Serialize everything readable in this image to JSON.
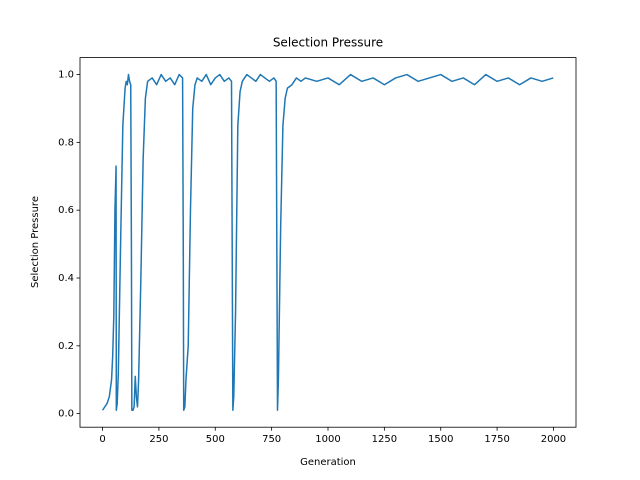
{
  "chart_data": {
    "type": "line",
    "title": "Selection Pressure",
    "xlabel": "Generation",
    "ylabel": "Selection Pressure",
    "xlim": [
      -100,
      2100
    ],
    "ylim": [
      -0.04,
      1.05
    ],
    "xticks": [
      0,
      250,
      500,
      750,
      1000,
      1250,
      1500,
      1750,
      2000
    ],
    "yticks": [
      {
        "value": 0,
        "label": "0.0"
      },
      0.2,
      0.4,
      0.6,
      0.8,
      {
        "value": 1,
        "label": "1.0"
      }
    ],
    "series": [
      {
        "name": "Selection Pressure",
        "color": "#1f77b4",
        "x": [
          0,
          10,
          20,
          30,
          40,
          45,
          50,
          55,
          60,
          61,
          65,
          70,
          80,
          90,
          100,
          105,
          110,
          115,
          120,
          125,
          128,
          130,
          135,
          140,
          145,
          150,
          155,
          160,
          170,
          180,
          190,
          200,
          220,
          240,
          260,
          280,
          300,
          320,
          340,
          355,
          358,
          360,
          365,
          370,
          380,
          390,
          400,
          410,
          420,
          440,
          460,
          480,
          500,
          520,
          540,
          560,
          572,
          575,
          578,
          582,
          590,
          600,
          610,
          620,
          640,
          660,
          680,
          700,
          720,
          740,
          760,
          770,
          773,
          776,
          780,
          790,
          800,
          810,
          820,
          840,
          860,
          880,
          900,
          950,
          1000,
          1050,
          1100,
          1150,
          1200,
          1250,
          1300,
          1350,
          1400,
          1450,
          1500,
          1550,
          1600,
          1650,
          1700,
          1750,
          1800,
          1850,
          1900,
          1950,
          1999
        ],
        "values": [
          0.01,
          0.02,
          0.03,
          0.05,
          0.1,
          0.17,
          0.29,
          0.6,
          0.73,
          0.01,
          0.03,
          0.12,
          0.5,
          0.85,
          0.96,
          0.98,
          0.97,
          1.0,
          0.98,
          0.97,
          0.5,
          0.01,
          0.01,
          0.02,
          0.11,
          0.05,
          0.02,
          0.1,
          0.4,
          0.75,
          0.93,
          0.98,
          0.99,
          0.97,
          1.0,
          0.98,
          0.99,
          0.97,
          1.0,
          0.99,
          0.5,
          0.01,
          0.02,
          0.1,
          0.2,
          0.6,
          0.9,
          0.97,
          0.99,
          0.98,
          1.0,
          0.97,
          0.99,
          1.0,
          0.98,
          0.99,
          0.98,
          0.5,
          0.01,
          0.05,
          0.3,
          0.85,
          0.95,
          0.98,
          1.0,
          0.99,
          0.98,
          1.0,
          0.99,
          0.98,
          0.99,
          0.98,
          0.5,
          0.01,
          0.1,
          0.55,
          0.85,
          0.93,
          0.96,
          0.97,
          0.99,
          0.98,
          0.99,
          0.98,
          0.99,
          0.97,
          1.0,
          0.98,
          0.99,
          0.97,
          0.99,
          1.0,
          0.98,
          0.99,
          1.0,
          0.98,
          0.99,
          0.97,
          1.0,
          0.98,
          0.99,
          0.97,
          0.99,
          0.98,
          0.99
        ]
      }
    ]
  }
}
